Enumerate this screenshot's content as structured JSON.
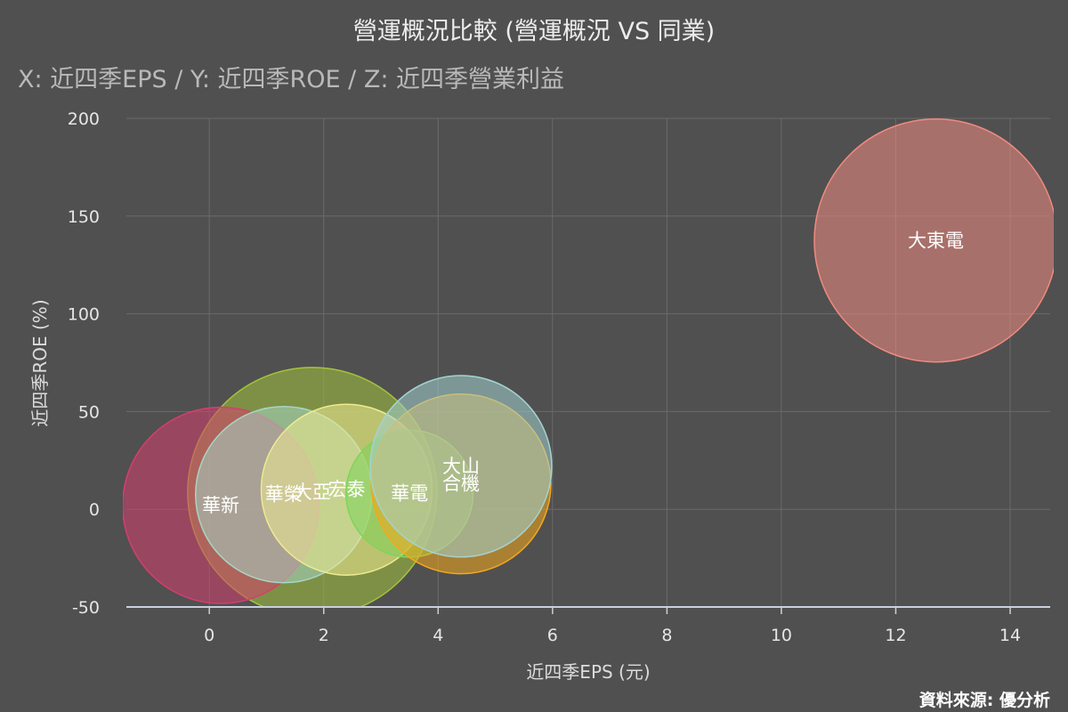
{
  "chart_data": {
    "type": "scatter",
    "title": "營運概況比較 (營運概況 VS 同業)",
    "subtitle": "X: 近四季EPS / Y: 近四季ROE / Z: 近四季營業利益",
    "xlabel": "近四季EPS (元)",
    "ylabel": "近四季ROE (%)",
    "source": "資料來源: 優分析",
    "xlim": [
      -1.45,
      14.7
    ],
    "ylim": [
      -50,
      200
    ],
    "x_ticks": [
      0,
      2,
      4,
      6,
      8,
      10,
      12,
      14
    ],
    "y_ticks": [
      -50,
      0,
      50,
      100,
      150,
      200
    ],
    "grid": true,
    "points": [
      {
        "name": "大亞",
        "x": 1.8,
        "y": 8.8,
        "z": 100,
        "color": "#a4c43c"
      },
      {
        "name": "華新",
        "x": 0.2,
        "y": 2,
        "z": 62,
        "color": "#d63e6e"
      },
      {
        "name": "華榮",
        "x": 1.3,
        "y": 7.5,
        "z": 50,
        "color": "#a6d6c4"
      },
      {
        "name": "宏泰",
        "x": 2.4,
        "y": 10,
        "z": 47,
        "color": "#eeeb92"
      },
      {
        "name": "華電",
        "x": 3.5,
        "y": 8,
        "z": 26,
        "color": "#7ed45a"
      },
      {
        "name": "合機",
        "x": 4.4,
        "y": 13,
        "z": 52,
        "color": "#f4a81c"
      },
      {
        "name": "大山",
        "x": 4.4,
        "y": 22,
        "z": 53,
        "color": "#a3d2d0"
      },
      {
        "name": "大東電",
        "x": 12.7,
        "y": 137.5,
        "z": 95,
        "color": "#f08a80"
      }
    ]
  }
}
